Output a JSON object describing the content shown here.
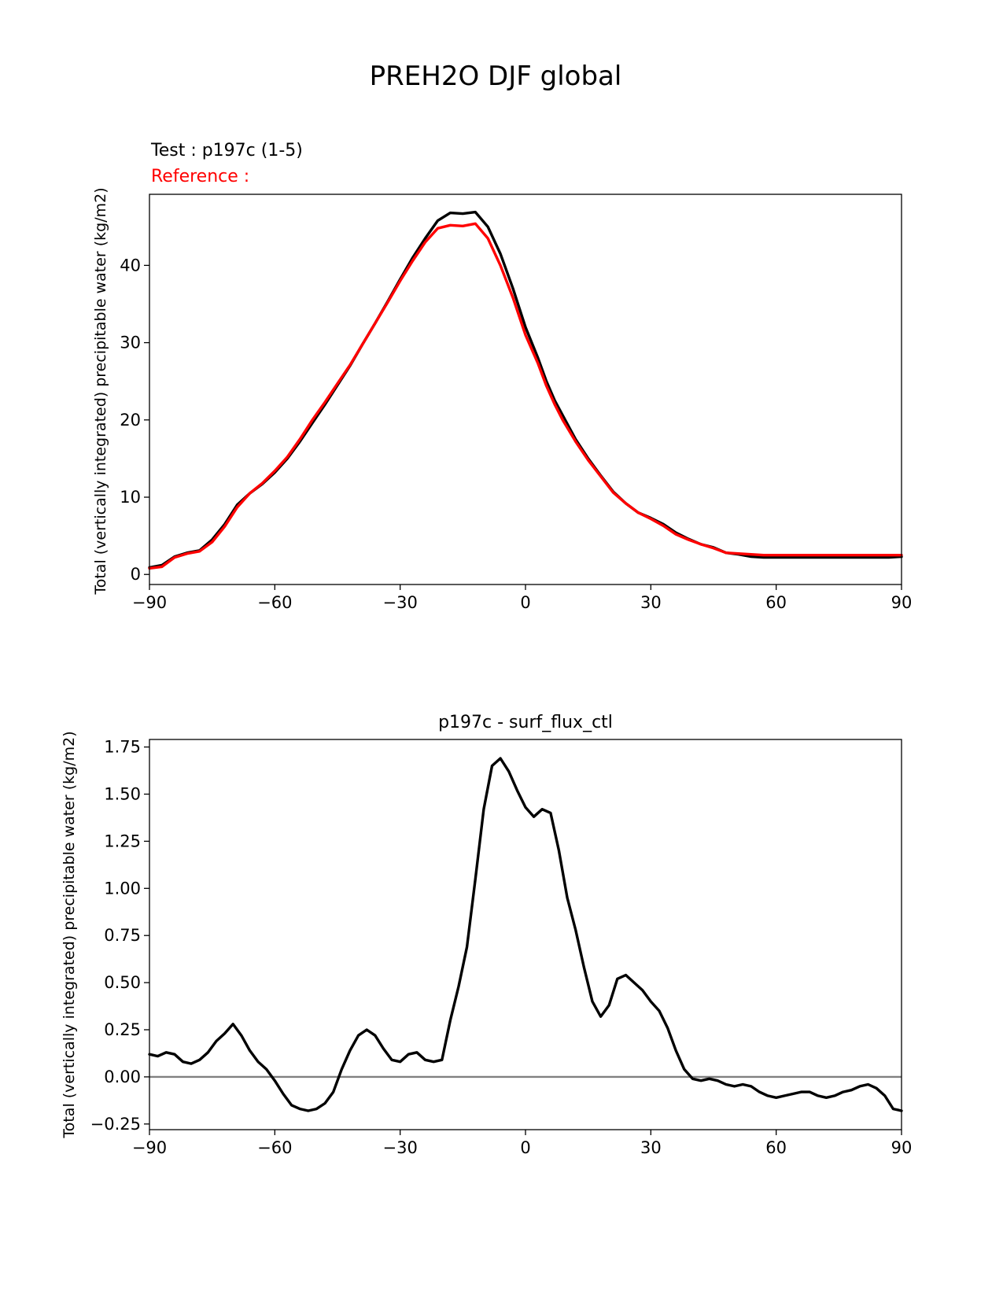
{
  "figure": {
    "title": "PREH2O DJF global"
  },
  "chart_data": [
    {
      "type": "line",
      "legend_test": "Test : p197c (1-5)",
      "legend_reference": "Reference :",
      "title": "",
      "xlabel": "",
      "ylabel": "Total (vertically integrated) precipitable water (kg/m2)",
      "xlim": [
        -90,
        90
      ],
      "ylim": [
        -1.3,
        49.2
      ],
      "xticks": [
        -90,
        -60,
        -30,
        0,
        30,
        60,
        90
      ],
      "xtick_labels": [
        "−90",
        "−60",
        "−30",
        "0",
        "30",
        "60",
        "90"
      ],
      "yticks": [
        0,
        10,
        20,
        30,
        40
      ],
      "ytick_labels": [
        "0",
        "10",
        "20",
        "30",
        "40"
      ],
      "grid": false,
      "x": [
        -90,
        -87,
        -84,
        -81,
        -78,
        -75,
        -72,
        -69,
        -66,
        -63,
        -60,
        -57,
        -54,
        -51,
        -48,
        -45,
        -42,
        -39,
        -36,
        -33,
        -30,
        -27,
        -24,
        -21,
        -18,
        -15,
        -12,
        -9,
        -6,
        -3,
        0,
        3,
        5,
        7,
        9,
        12,
        15,
        18,
        21,
        24,
        27,
        30,
        33,
        36,
        39,
        42,
        45,
        48,
        51,
        54,
        57,
        60,
        63,
        66,
        69,
        72,
        75,
        78,
        81,
        84,
        87,
        90
      ],
      "series": [
        {
          "name": "Test",
          "color": "#000000",
          "values": [
            0.9,
            1.2,
            2.3,
            2.8,
            3.1,
            4.5,
            6.5,
            9.0,
            10.5,
            11.7,
            13.2,
            15.0,
            17.2,
            19.6,
            22.0,
            24.5,
            27.0,
            29.8,
            32.5,
            35.3,
            38.2,
            41.0,
            43.5,
            45.8,
            46.8,
            46.7,
            46.9,
            45.0,
            41.5,
            37.0,
            32.0,
            28.0,
            25.0,
            22.5,
            20.5,
            17.5,
            15.0,
            12.8,
            10.7,
            9.2,
            8.0,
            7.3,
            6.5,
            5.4,
            4.6,
            3.9,
            3.5,
            2.8,
            2.6,
            2.3,
            2.2,
            2.2,
            2.2,
            2.2,
            2.2,
            2.2,
            2.2,
            2.2,
            2.2,
            2.2,
            2.2,
            2.3
          ]
        },
        {
          "name": "Reference",
          "color": "#ff0000",
          "values": [
            0.8,
            1.0,
            2.2,
            2.7,
            3.0,
            4.2,
            6.2,
            8.7,
            10.5,
            11.8,
            13.4,
            15.2,
            17.5,
            20.0,
            22.3,
            24.7,
            27.1,
            29.8,
            32.5,
            35.2,
            38.0,
            40.6,
            43.0,
            44.8,
            45.2,
            45.1,
            45.4,
            43.5,
            40.0,
            35.8,
            31.0,
            27.3,
            24.4,
            22.0,
            19.9,
            17.2,
            14.8,
            12.7,
            10.6,
            9.2,
            8.0,
            7.2,
            6.3,
            5.2,
            4.5,
            3.9,
            3.4,
            2.8,
            2.7,
            2.6,
            2.5,
            2.5,
            2.5,
            2.5,
            2.5,
            2.5,
            2.5,
            2.5,
            2.5,
            2.5,
            2.5,
            2.5
          ]
        }
      ]
    },
    {
      "type": "line",
      "title": "p197c - surf_flux_ctl",
      "xlabel": "",
      "ylabel": "Total (vertically integrated) precipitable water (kg/m2)",
      "xlim": [
        -90,
        90
      ],
      "ylim": [
        -0.28,
        1.79
      ],
      "xticks": [
        -90,
        -60,
        -30,
        0,
        30,
        60,
        90
      ],
      "xtick_labels": [
        "−90",
        "−60",
        "−30",
        "0",
        "30",
        "60",
        "90"
      ],
      "yticks": [
        -0.25,
        0.0,
        0.25,
        0.5,
        0.75,
        1.0,
        1.25,
        1.5,
        1.75
      ],
      "ytick_labels": [
        "−0.25",
        "0.00",
        "0.25",
        "0.50",
        "0.75",
        "1.00",
        "1.25",
        "1.50",
        "1.75"
      ],
      "grid": false,
      "zero_line_color": "#808080",
      "x": [
        -90,
        -88,
        -86,
        -84,
        -82,
        -80,
        -78,
        -76,
        -74,
        -72,
        -70,
        -68,
        -66,
        -64,
        -62,
        -60,
        -58,
        -56,
        -54,
        -52,
        -50,
        -48,
        -46,
        -44,
        -42,
        -40,
        -38,
        -36,
        -34,
        -32,
        -30,
        -28,
        -26,
        -24,
        -22,
        -20,
        -18,
        -16,
        -14,
        -12,
        -10,
        -8,
        -6,
        -4,
        -2,
        0,
        2,
        4,
        6,
        8,
        10,
        12,
        14,
        16,
        18,
        20,
        22,
        24,
        26,
        28,
        30,
        32,
        34,
        36,
        38,
        40,
        42,
        44,
        46,
        48,
        50,
        52,
        54,
        56,
        58,
        60,
        62,
        64,
        66,
        68,
        70,
        72,
        74,
        76,
        78,
        80,
        82,
        84,
        86,
        88,
        90
      ],
      "series": [
        {
          "name": "p197c - surf_flux_ctl",
          "color": "#000000",
          "values": [
            0.12,
            0.11,
            0.13,
            0.12,
            0.08,
            0.07,
            0.09,
            0.13,
            0.19,
            0.23,
            0.28,
            0.22,
            0.14,
            0.08,
            0.04,
            -0.02,
            -0.09,
            -0.15,
            -0.17,
            -0.18,
            -0.17,
            -0.14,
            -0.08,
            0.04,
            0.14,
            0.22,
            0.25,
            0.22,
            0.15,
            0.09,
            0.08,
            0.12,
            0.13,
            0.09,
            0.08,
            0.09,
            0.3,
            0.48,
            0.69,
            1.05,
            1.42,
            1.65,
            1.69,
            1.62,
            1.52,
            1.43,
            1.38,
            1.42,
            1.4,
            1.2,
            0.95,
            0.78,
            0.58,
            0.4,
            0.32,
            0.38,
            0.52,
            0.54,
            0.5,
            0.46,
            0.4,
            0.35,
            0.26,
            0.14,
            0.04,
            -0.01,
            -0.02,
            -0.01,
            -0.02,
            -0.04,
            -0.05,
            -0.04,
            -0.05,
            -0.08,
            -0.1,
            -0.11,
            -0.1,
            -0.09,
            -0.08,
            -0.08,
            -0.1,
            -0.11,
            -0.1,
            -0.08,
            -0.07,
            -0.05,
            -0.04,
            -0.06,
            -0.1,
            -0.17,
            -0.18
          ]
        }
      ]
    }
  ]
}
